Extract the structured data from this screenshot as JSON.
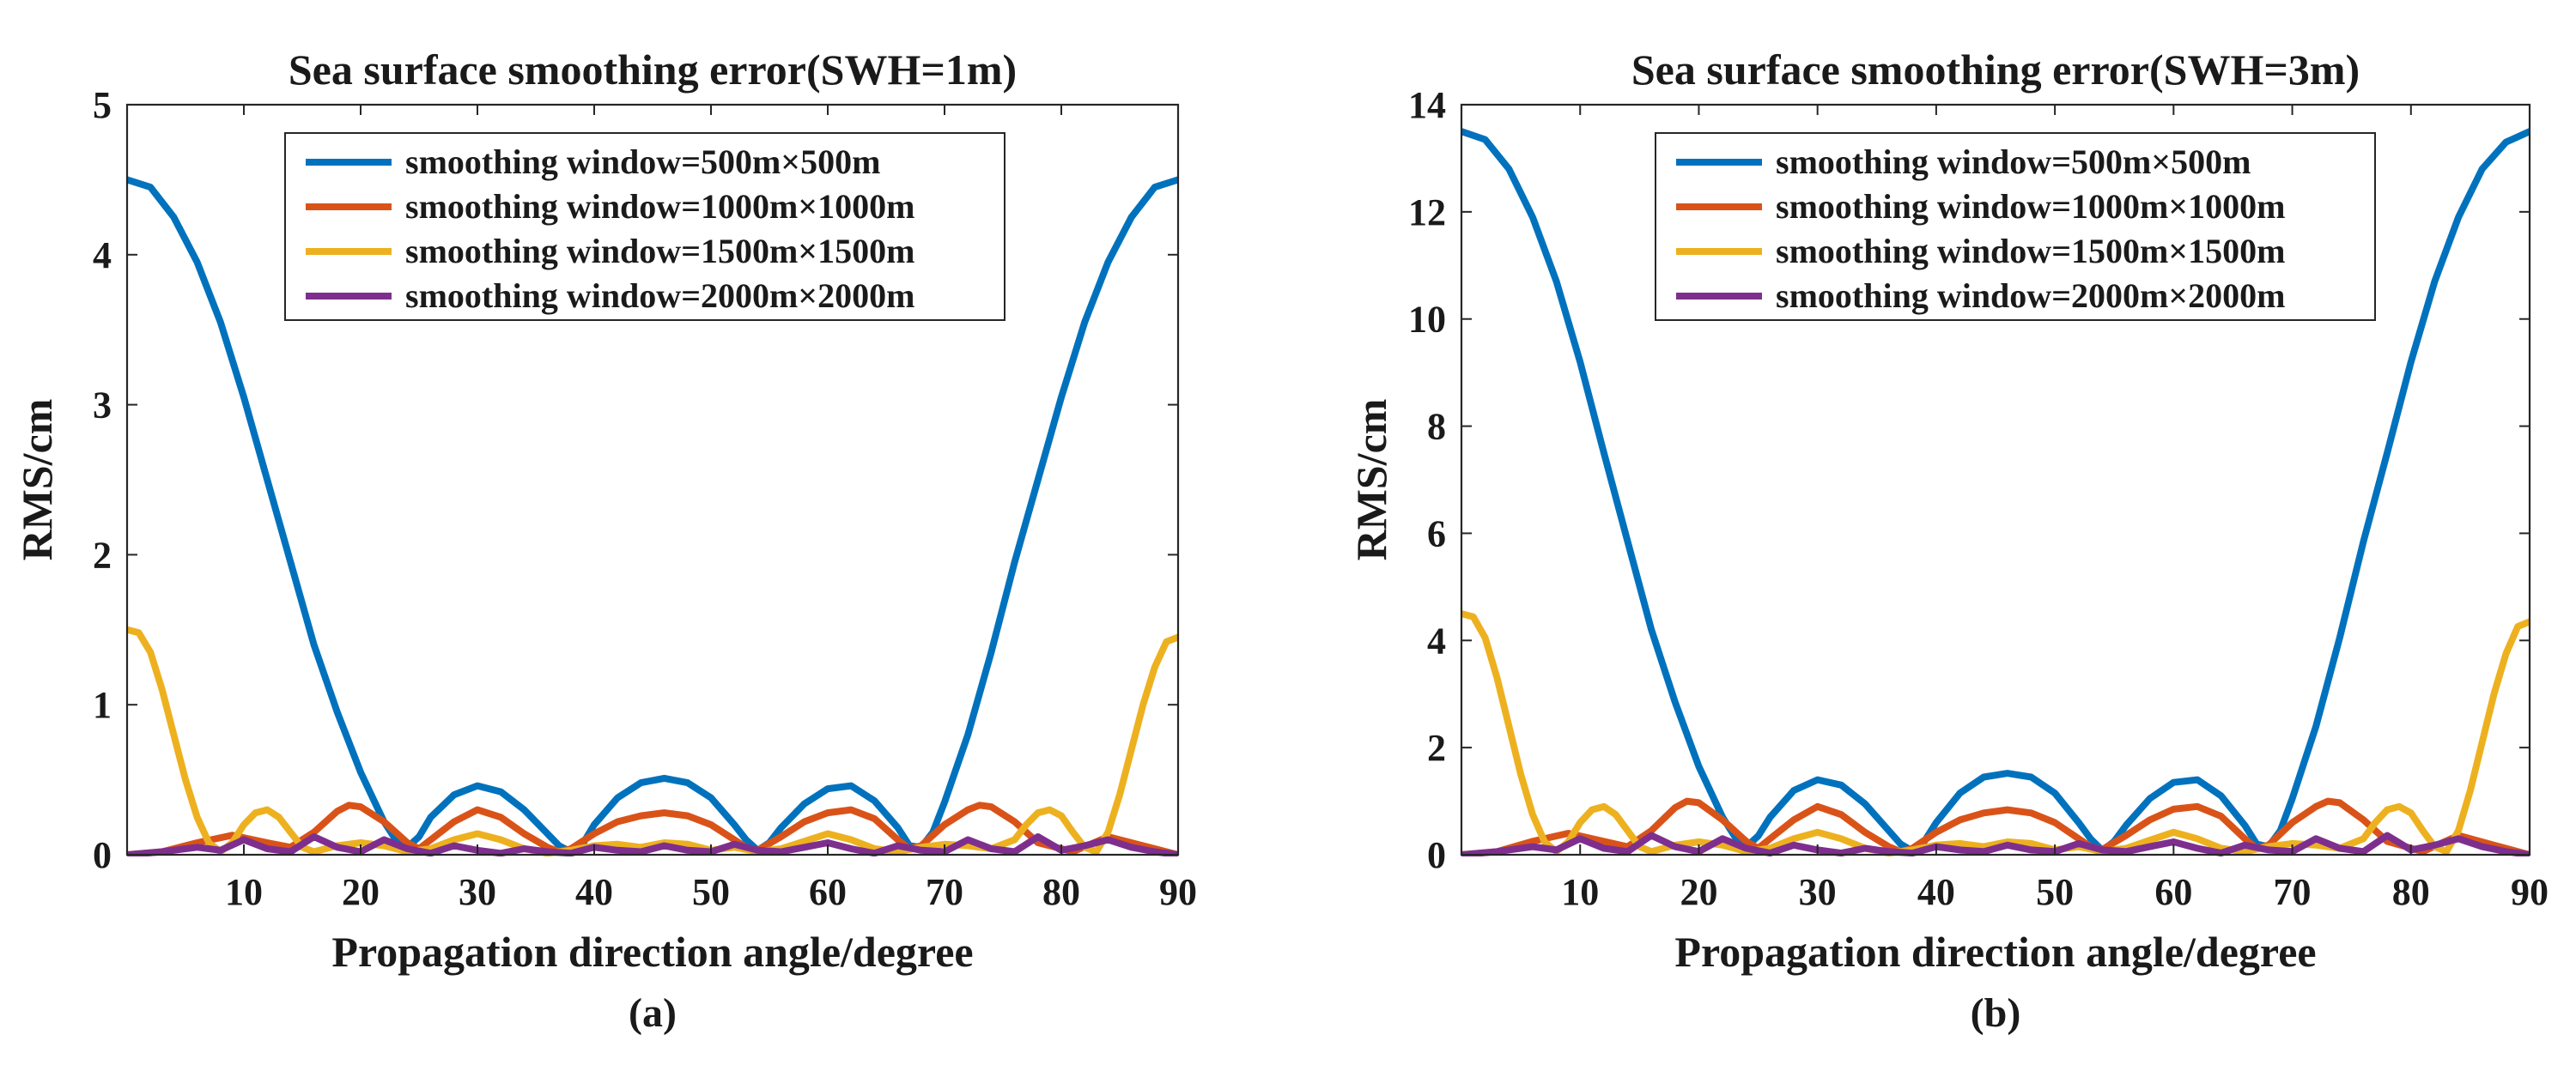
{
  "chart_data": [
    {
      "type": "line",
      "title": "Sea surface smoothing error(SWH=1m)",
      "xlabel": "Propagation direction angle/degree",
      "ylabel": "RMS/cm",
      "caption": "(a)",
      "xlim": [
        0,
        90
      ],
      "ylim": [
        0,
        5
      ],
      "xticks": [
        10,
        20,
        30,
        40,
        50,
        60,
        70,
        80,
        90
      ],
      "yticks": [
        0,
        1,
        2,
        3,
        4,
        5
      ],
      "legend_position": "top-center",
      "series": [
        {
          "name": "smoothing window=500m×500m",
          "color": "#0072BD",
          "x": [
            0,
            2,
            4,
            6,
            8,
            10,
            12,
            14,
            16,
            18,
            20,
            22,
            23,
            24,
            25,
            26,
            28,
            30,
            32,
            34,
            36,
            37,
            38,
            39,
            40,
            42,
            44,
            46,
            48,
            50,
            52,
            53,
            54,
            55,
            56,
            58,
            60,
            62,
            64,
            66,
            67,
            68,
            69,
            70,
            72,
            74,
            76,
            78,
            80,
            82,
            84,
            86,
            88,
            90
          ],
          "y": [
            4.5,
            4.45,
            4.25,
            3.95,
            3.55,
            3.05,
            2.5,
            1.95,
            1.4,
            0.95,
            0.55,
            0.22,
            0.1,
            0.05,
            0.12,
            0.25,
            0.4,
            0.46,
            0.42,
            0.3,
            0.14,
            0.06,
            0.02,
            0.07,
            0.2,
            0.38,
            0.48,
            0.51,
            0.48,
            0.38,
            0.2,
            0.1,
            0.03,
            0.08,
            0.18,
            0.34,
            0.44,
            0.46,
            0.36,
            0.18,
            0.06,
            0.05,
            0.15,
            0.35,
            0.8,
            1.35,
            1.95,
            2.5,
            3.05,
            3.55,
            3.95,
            4.25,
            4.45,
            4.5
          ]
        },
        {
          "name": "smoothing window=1000m×1000m",
          "color": "#D95319",
          "x": [
            0,
            3,
            6,
            9,
            12,
            14,
            16,
            18,
            19,
            20,
            22,
            24,
            25,
            26,
            28,
            30,
            32,
            34,
            36,
            37,
            38,
            40,
            42,
            44,
            46,
            48,
            50,
            52,
            53,
            54,
            56,
            58,
            60,
            62,
            64,
            66,
            67,
            68,
            70,
            72,
            73,
            74,
            76,
            78,
            81,
            84,
            87,
            90
          ],
          "y": [
            0,
            0.02,
            0.08,
            0.13,
            0.08,
            0.05,
            0.15,
            0.29,
            0.33,
            0.32,
            0.22,
            0.08,
            0.04,
            0.1,
            0.22,
            0.3,
            0.25,
            0.14,
            0.05,
            0.02,
            0.04,
            0.14,
            0.22,
            0.26,
            0.28,
            0.26,
            0.2,
            0.1,
            0.05,
            0.03,
            0.12,
            0.22,
            0.28,
            0.3,
            0.24,
            0.1,
            0.04,
            0.06,
            0.2,
            0.3,
            0.33,
            0.32,
            0.22,
            0.08,
            0.02,
            0.12,
            0.06,
            0
          ]
        },
        {
          "name": "smoothing window=1500m×1500m",
          "color": "#EDB120",
          "x": [
            0,
            1,
            2,
            3,
            4,
            5,
            6,
            7,
            8,
            9,
            10,
            11,
            12,
            13,
            14,
            15,
            16,
            18,
            20,
            22,
            24,
            26,
            28,
            30,
            32,
            34,
            36,
            38,
            40,
            42,
            44,
            46,
            48,
            50,
            52,
            54,
            56,
            58,
            60,
            62,
            64,
            66,
            68,
            70,
            72,
            74,
            76,
            77,
            78,
            79,
            80,
            81,
            82,
            83,
            84,
            85,
            86,
            87,
            88,
            89,
            90
          ],
          "y": [
            1.5,
            1.48,
            1.35,
            1.1,
            0.8,
            0.5,
            0.25,
            0.08,
            0.02,
            0.08,
            0.2,
            0.28,
            0.3,
            0.25,
            0.15,
            0.05,
            0.02,
            0.06,
            0.08,
            0.06,
            0.02,
            0.04,
            0.1,
            0.14,
            0.1,
            0.04,
            0.01,
            0.03,
            0.06,
            0.07,
            0.05,
            0.08,
            0.07,
            0.03,
            0.05,
            0.02,
            0.04,
            0.09,
            0.14,
            0.1,
            0.04,
            0.02,
            0.05,
            0.07,
            0.06,
            0.04,
            0.1,
            0.2,
            0.28,
            0.3,
            0.26,
            0.15,
            0.05,
            0.02,
            0.15,
            0.4,
            0.7,
            1.0,
            1.25,
            1.42,
            1.45
          ]
        },
        {
          "name": "smoothing window=2000m×2000m",
          "color": "#7E2F8E",
          "x": [
            0,
            3,
            6,
            8,
            10,
            12,
            14,
            16,
            18,
            20,
            22,
            24,
            26,
            28,
            30,
            32,
            34,
            36,
            38,
            40,
            42,
            44,
            46,
            48,
            50,
            52,
            54,
            56,
            58,
            60,
            62,
            64,
            66,
            68,
            70,
            72,
            74,
            76,
            78,
            80,
            82,
            84,
            86,
            88,
            90
          ],
          "y": [
            0,
            0.02,
            0.05,
            0.03,
            0.1,
            0.04,
            0.02,
            0.12,
            0.05,
            0.02,
            0.1,
            0.04,
            0.01,
            0.06,
            0.03,
            0.01,
            0.04,
            0.02,
            0.01,
            0.05,
            0.03,
            0.02,
            0.06,
            0.03,
            0.02,
            0.07,
            0.03,
            0.02,
            0.05,
            0.08,
            0.04,
            0.01,
            0.06,
            0.03,
            0.02,
            0.1,
            0.04,
            0.02,
            0.12,
            0.03,
            0.06,
            0.1,
            0.05,
            0.02,
            0
          ]
        }
      ]
    },
    {
      "type": "line",
      "title": "Sea surface smoothing error(SWH=3m)",
      "xlabel": "Propagation direction angle/degree",
      "ylabel": "RMS/cm",
      "caption": "(b)",
      "xlim": [
        0,
        90
      ],
      "ylim": [
        0,
        14
      ],
      "xticks": [
        10,
        20,
        30,
        40,
        50,
        60,
        70,
        80,
        90
      ],
      "yticks": [
        0,
        2,
        4,
        6,
        8,
        10,
        12,
        14
      ],
      "legend_position": "top-center",
      "series": [
        {
          "name": "smoothing window=500m×500m",
          "color": "#0072BD",
          "x": [
            0,
            2,
            4,
            6,
            8,
            10,
            12,
            14,
            16,
            18,
            20,
            22,
            23,
            24,
            25,
            26,
            28,
            30,
            32,
            34,
            36,
            37,
            38,
            39,
            40,
            42,
            44,
            46,
            48,
            50,
            52,
            53,
            54,
            55,
            56,
            58,
            60,
            62,
            64,
            66,
            67,
            68,
            69,
            70,
            72,
            74,
            76,
            78,
            80,
            82,
            84,
            86,
            88,
            90
          ],
          "y": [
            13.5,
            13.35,
            12.8,
            11.9,
            10.7,
            9.2,
            7.5,
            5.85,
            4.2,
            2.85,
            1.65,
            0.7,
            0.35,
            0.15,
            0.35,
            0.7,
            1.2,
            1.4,
            1.3,
            0.95,
            0.45,
            0.2,
            0.07,
            0.25,
            0.6,
            1.15,
            1.45,
            1.52,
            1.45,
            1.15,
            0.6,
            0.3,
            0.08,
            0.25,
            0.55,
            1.05,
            1.35,
            1.4,
            1.1,
            0.55,
            0.2,
            0.15,
            0.45,
            1.05,
            2.4,
            4.05,
            5.85,
            7.5,
            9.2,
            10.7,
            11.9,
            12.8,
            13.3,
            13.5
          ]
        },
        {
          "name": "smoothing window=1000m×1000m",
          "color": "#D95319",
          "x": [
            0,
            3,
            6,
            9,
            12,
            14,
            16,
            18,
            19,
            20,
            22,
            24,
            25,
            26,
            28,
            30,
            32,
            34,
            36,
            37,
            38,
            40,
            42,
            44,
            46,
            48,
            50,
            52,
            53,
            54,
            56,
            58,
            60,
            62,
            64,
            66,
            67,
            68,
            70,
            72,
            73,
            74,
            76,
            78,
            81,
            84,
            87,
            90
          ],
          "y": [
            0,
            0.06,
            0.25,
            0.4,
            0.25,
            0.15,
            0.45,
            0.88,
            1.0,
            0.97,
            0.65,
            0.25,
            0.12,
            0.3,
            0.65,
            0.9,
            0.75,
            0.42,
            0.15,
            0.06,
            0.12,
            0.42,
            0.65,
            0.78,
            0.84,
            0.78,
            0.6,
            0.3,
            0.15,
            0.1,
            0.36,
            0.65,
            0.85,
            0.9,
            0.72,
            0.3,
            0.12,
            0.18,
            0.6,
            0.9,
            1.0,
            0.97,
            0.65,
            0.25,
            0.06,
            0.36,
            0.18,
            0
          ]
        },
        {
          "name": "smoothing window=1500m×1500m",
          "color": "#EDB120",
          "x": [
            0,
            1,
            2,
            3,
            4,
            5,
            6,
            7,
            8,
            9,
            10,
            11,
            12,
            13,
            14,
            15,
            16,
            18,
            20,
            22,
            24,
            26,
            28,
            30,
            32,
            34,
            36,
            38,
            40,
            42,
            44,
            46,
            48,
            50,
            52,
            54,
            56,
            58,
            60,
            62,
            64,
            66,
            68,
            70,
            72,
            74,
            76,
            77,
            78,
            79,
            80,
            81,
            82,
            83,
            84,
            85,
            86,
            87,
            88,
            89,
            90
          ],
          "y": [
            4.5,
            4.44,
            4.05,
            3.3,
            2.4,
            1.5,
            0.75,
            0.24,
            0.06,
            0.24,
            0.6,
            0.84,
            0.9,
            0.75,
            0.45,
            0.15,
            0.06,
            0.18,
            0.24,
            0.18,
            0.06,
            0.12,
            0.3,
            0.42,
            0.3,
            0.12,
            0.03,
            0.09,
            0.18,
            0.21,
            0.15,
            0.24,
            0.21,
            0.09,
            0.15,
            0.06,
            0.12,
            0.27,
            0.42,
            0.3,
            0.12,
            0.06,
            0.15,
            0.21,
            0.18,
            0.12,
            0.3,
            0.6,
            0.84,
            0.9,
            0.78,
            0.45,
            0.15,
            0.06,
            0.45,
            1.2,
            2.1,
            3.0,
            3.75,
            4.26,
            4.35
          ]
        },
        {
          "name": "smoothing window=2000m×2000m",
          "color": "#7E2F8E",
          "x": [
            0,
            3,
            6,
            8,
            10,
            12,
            14,
            16,
            18,
            20,
            22,
            24,
            26,
            28,
            30,
            32,
            34,
            36,
            38,
            40,
            42,
            44,
            46,
            48,
            50,
            52,
            54,
            56,
            58,
            60,
            62,
            64,
            66,
            68,
            70,
            72,
            74,
            76,
            78,
            80,
            82,
            84,
            86,
            88,
            90
          ],
          "y": [
            0,
            0.06,
            0.15,
            0.09,
            0.3,
            0.12,
            0.06,
            0.36,
            0.15,
            0.06,
            0.3,
            0.12,
            0.03,
            0.18,
            0.09,
            0.03,
            0.12,
            0.06,
            0.03,
            0.15,
            0.09,
            0.06,
            0.18,
            0.09,
            0.06,
            0.21,
            0.09,
            0.06,
            0.15,
            0.24,
            0.12,
            0.03,
            0.18,
            0.09,
            0.06,
            0.3,
            0.12,
            0.06,
            0.36,
            0.09,
            0.18,
            0.3,
            0.15,
            0.06,
            0
          ]
        }
      ]
    }
  ]
}
